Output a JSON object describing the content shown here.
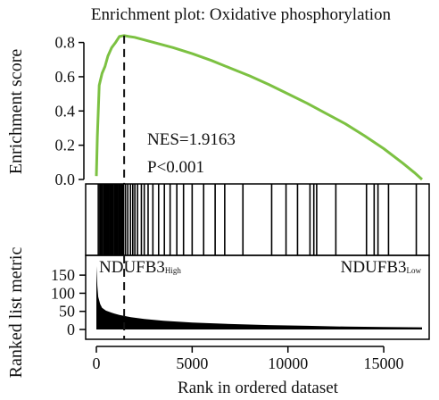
{
  "chart_data": [
    {
      "type": "line",
      "title": "Enrichment plot: Oxidative phosphorylation",
      "ylabel": "Enrichment score",
      "ylim": [
        0,
        0.85
      ],
      "yticks": [
        "0.0",
        "0.2",
        "0.4",
        "0.6",
        "0.8"
      ],
      "x": [
        0,
        50,
        150,
        300,
        450,
        600,
        800,
        1000,
        1200,
        1450,
        1700,
        2000,
        2500,
        3000,
        4000,
        5000,
        6000,
        7000,
        8000,
        9000,
        10000,
        11000,
        12000,
        13000,
        14000,
        15000,
        16000,
        16600,
        17000
      ],
      "y": [
        0.02,
        0.25,
        0.55,
        0.62,
        0.66,
        0.72,
        0.77,
        0.8,
        0.835,
        0.84,
        0.835,
        0.83,
        0.815,
        0.8,
        0.77,
        0.735,
        0.695,
        0.65,
        0.605,
        0.555,
        0.5,
        0.445,
        0.385,
        0.325,
        0.255,
        0.18,
        0.095,
        0.04,
        0.0
      ],
      "line_color": "#7cc142",
      "peak_rank": 1450,
      "annotations": [
        "NES=1.9163",
        "P<0.001"
      ]
    },
    {
      "type": "barcode",
      "hits": [
        100,
        180,
        240,
        300,
        370,
        430,
        500,
        560,
        610,
        660,
        720,
        780,
        830,
        880,
        950,
        1010,
        1060,
        1110,
        1180,
        1240,
        1300,
        1360,
        1420,
        1520,
        1640,
        1780,
        1900,
        2010,
        2150,
        2350,
        2500,
        2700,
        2950,
        3250,
        3550,
        3850,
        4200,
        4550,
        5000,
        5600,
        6200,
        6700,
        7650,
        9150,
        9900,
        10500,
        11150,
        11350,
        11500,
        12500,
        14100,
        14500,
        14700,
        15250,
        16700
      ]
    },
    {
      "type": "area",
      "ylabel": "Ranked list metric",
      "xlabel": "Rank in ordered dataset",
      "ylim": [
        0,
        175
      ],
      "yticks": [
        "0",
        "50",
        "100",
        "150"
      ],
      "xticks": [
        "0",
        "5000",
        "10000",
        "15000"
      ],
      "x": [
        0,
        50,
        100,
        200,
        300,
        500,
        800,
        1200,
        1800,
        2500,
        3500,
        5000,
        7000,
        9000,
        11000,
        13000,
        15000,
        17000
      ],
      "y": [
        175,
        120,
        90,
        70,
        60,
        52,
        46,
        40,
        34,
        29,
        24,
        19,
        15,
        12,
        10,
        8,
        7,
        6
      ],
      "label_left": "NDUFB3",
      "label_left_sub": "High",
      "label_right": "NDUFB3",
      "label_right_sub": "Low"
    }
  ]
}
